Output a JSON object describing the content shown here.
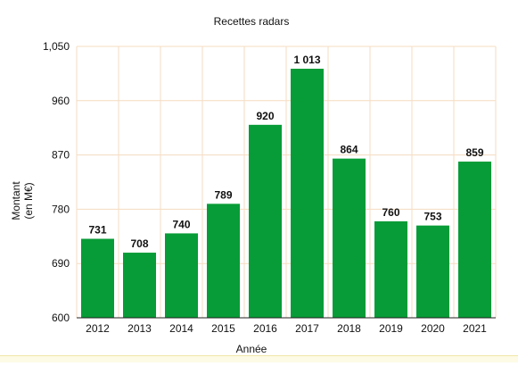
{
  "chart_data": {
    "type": "bar",
    "title": "Recettes radars",
    "xlabel": "Année",
    "ylabel_lines": [
      "Montant",
      "(en M€)"
    ],
    "categories": [
      "2012",
      "2013",
      "2014",
      "2015",
      "2016",
      "2017",
      "2018",
      "2019",
      "2020",
      "2021"
    ],
    "values": [
      731,
      708,
      740,
      789,
      920,
      1013,
      864,
      760,
      753,
      859
    ],
    "value_labels": [
      "731",
      "708",
      "740",
      "789",
      "920",
      "1 013",
      "864",
      "760",
      "753",
      "859"
    ],
    "ylim": [
      600,
      1050
    ],
    "yticks": [
      600,
      690,
      780,
      870,
      960,
      1050
    ],
    "ytick_labels": [
      "600",
      "690",
      "780",
      "870",
      "960",
      "1,050"
    ],
    "grid": true,
    "colors": {
      "bar": "#079c37",
      "grid": "#f5dcc0",
      "axis": "#222222"
    }
  }
}
